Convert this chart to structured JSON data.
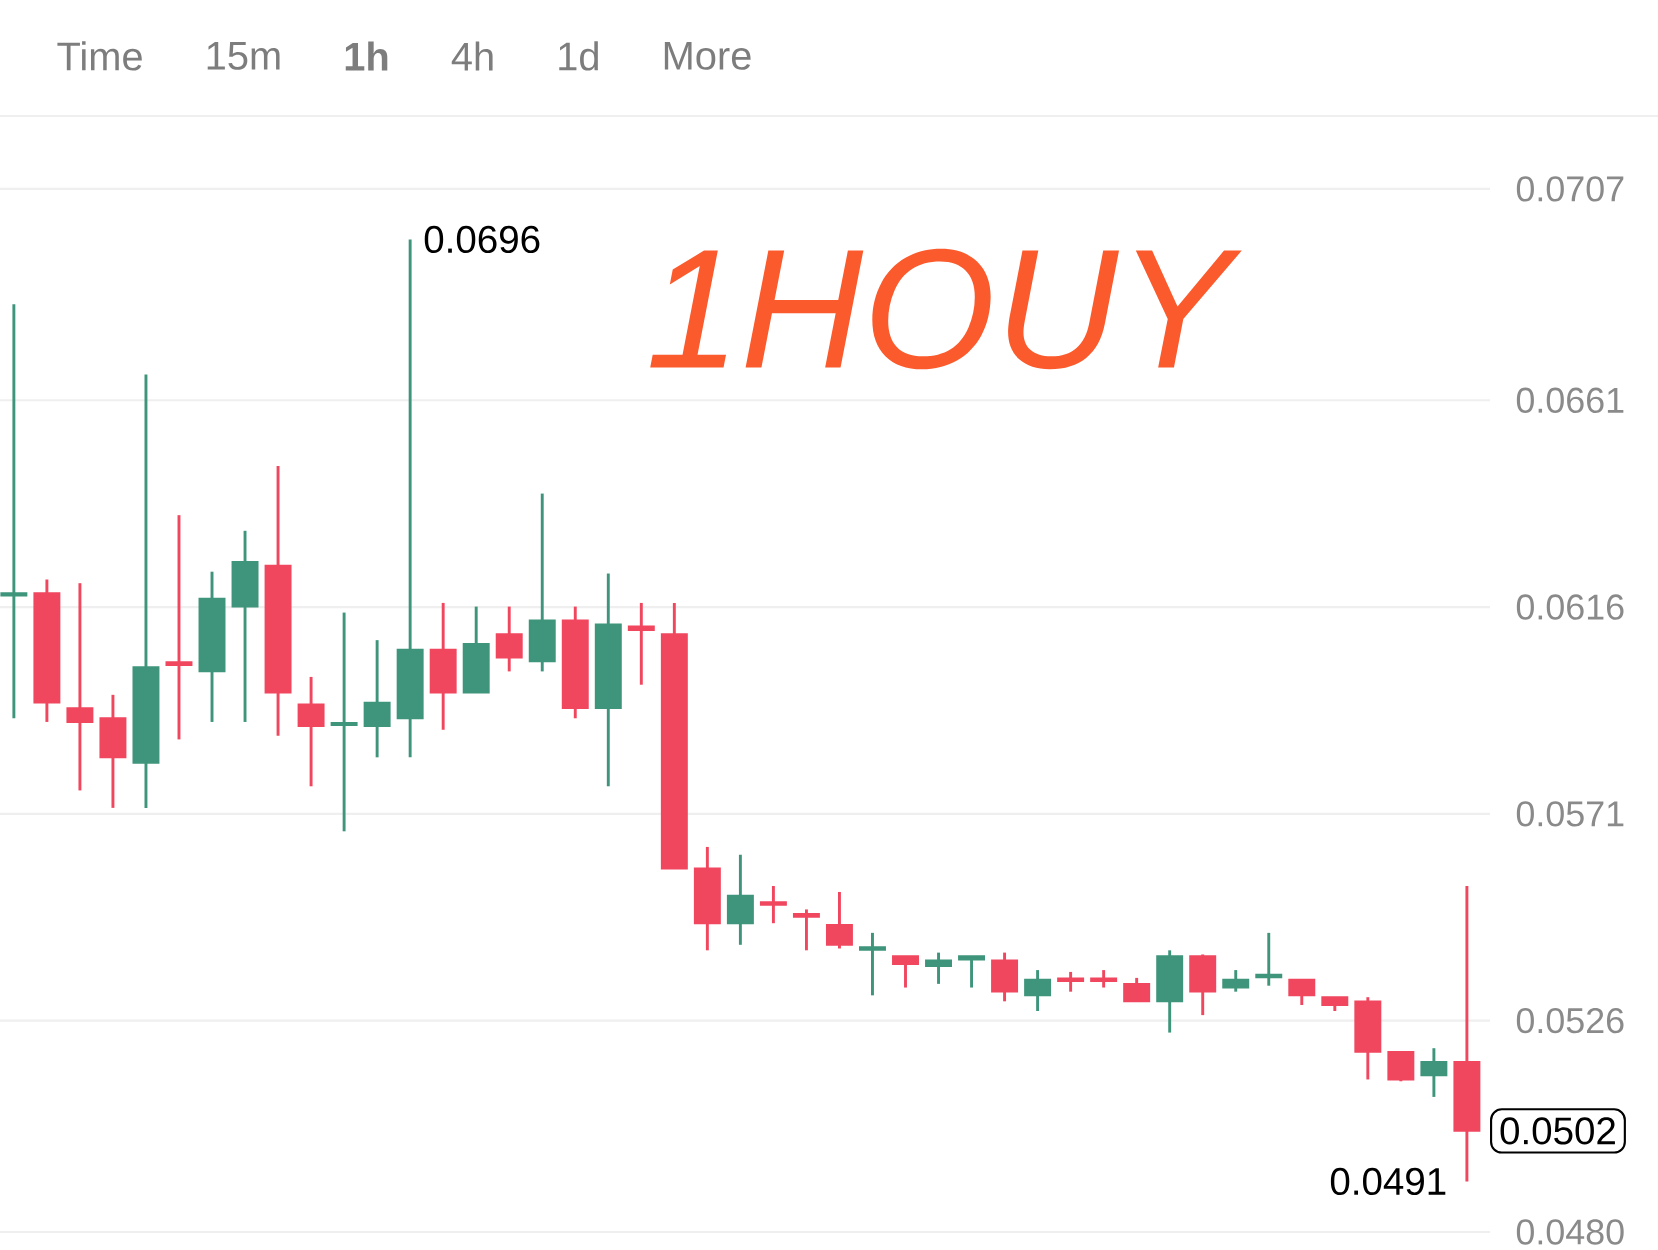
{
  "chart_data": {
    "type": "candlestick",
    "categories": [
      null,
      null,
      null,
      null,
      null,
      null,
      null,
      null,
      null,
      null,
      null,
      null,
      null,
      null,
      null,
      null,
      null,
      null,
      null,
      null,
      null,
      null,
      null,
      null,
      null,
      null,
      null,
      null,
      null,
      null,
      null,
      null,
      null,
      null,
      null,
      null,
      null,
      null,
      null,
      null,
      null,
      null,
      null,
      null,
      null
    ],
    "ohlc": [
      [
        0.06185,
        0.06819,
        0.05918,
        0.0619
      ],
      [
        0.0619,
        0.0622,
        0.0591,
        0.05952
      ],
      [
        0.0594,
        0.06212,
        0.05761,
        0.0591
      ],
      [
        0.05918,
        0.05969,
        0.05723,
        0.05833
      ],
      [
        0.05821,
        0.06666,
        0.05723,
        0.06029
      ],
      [
        0.0604,
        0.0636,
        0.05872,
        0.06034
      ],
      [
        0.0602,
        0.06237,
        0.0591,
        0.06178
      ],
      [
        0.06161,
        0.06326,
        0.0591,
        0.06258
      ],
      [
        0.0625,
        0.06467,
        0.0588,
        0.05974
      ],
      [
        0.05948,
        0.06008,
        0.0577,
        0.05901
      ],
      [
        0.05903,
        0.06148,
        0.05672,
        0.05908
      ],
      [
        0.05901,
        0.06088,
        0.05833,
        0.05952
      ],
      [
        0.05918,
        0.0696,
        0.05833,
        0.06067
      ],
      [
        0.06067,
        0.06169,
        0.05893,
        0.05974
      ],
      [
        0.05974,
        0.06161,
        0.05974,
        0.0608
      ],
      [
        0.06101,
        0.06161,
        0.0602,
        0.0605
      ],
      [
        0.06042,
        0.06407,
        0.0602,
        0.06131
      ],
      [
        0.06131,
        0.06161,
        0.05918,
        0.0594
      ],
      [
        0.0594,
        0.06233,
        0.0577,
        0.06122
      ],
      [
        0.06118,
        0.06169,
        0.05991,
        0.0611
      ],
      [
        0.06101,
        0.06169,
        0.05591,
        0.05591
      ],
      [
        0.05591,
        0.05638,
        0.05413,
        0.05472
      ],
      [
        0.05472,
        0.05621,
        0.05425,
        0.05532
      ],
      [
        0.05518,
        0.05553,
        0.05472,
        0.05512
      ],
      [
        0.05492,
        0.05502,
        0.05413,
        0.05486
      ],
      [
        0.05468,
        0.0554,
        0.05417,
        0.05425
      ],
      [
        0.05414,
        0.05451,
        0.05315,
        0.0542
      ],
      [
        0.054,
        0.054,
        0.05332,
        0.05383
      ],
      [
        0.05379,
        0.05408,
        0.0534,
        0.05391
      ],
      [
        0.05393,
        0.054,
        0.05332,
        0.054
      ],
      [
        0.05391,
        0.05408,
        0.05302,
        0.05323
      ],
      [
        0.05315,
        0.0537,
        0.05281,
        0.05349
      ],
      [
        0.05352,
        0.05366,
        0.05323,
        0.05346
      ],
      [
        0.05352,
        0.0537,
        0.05332,
        0.05346
      ],
      [
        0.0534,
        0.05353,
        0.05302,
        0.05302
      ],
      [
        0.05302,
        0.05413,
        0.05234,
        0.054
      ],
      [
        0.054,
        0.05404,
        0.05272,
        0.05323
      ],
      [
        0.05332,
        0.0537,
        0.05323,
        0.05349
      ],
      [
        0.05354,
        0.05451,
        0.05336,
        0.0536
      ],
      [
        0.05349,
        0.05349,
        0.05294,
        0.05315
      ],
      [
        0.05311,
        0.05311,
        0.05281,
        0.05294
      ],
      [
        0.05302,
        0.05311,
        0.05132,
        0.05192
      ],
      [
        0.05192,
        0.05192,
        0.05128,
        0.05132
      ],
      [
        0.05141,
        0.052,
        0.05094,
        0.0517
      ],
      [
        0.0517,
        0.05553,
        0.0491,
        0.0502
      ]
    ],
    "colors": [
      "#3f957b",
      "#f0475f",
      "#f0475f",
      "#f0475f",
      "#3f957b",
      "#f0475f",
      "#3f957b",
      "#3f957b",
      "#f0475f",
      "#f0475f",
      "#3f957b",
      "#3f957b",
      "#3f957b",
      "#f0475f",
      "#3f957b",
      "#f0475f",
      "#3f957b",
      "#f0475f",
      "#3f957b",
      "#f0475f",
      "#f0475f",
      "#f0475f",
      "#3f957b",
      "#f0475f",
      "#f0475f",
      "#f0475f",
      "#3f957b",
      "#f0475f",
      "#3f957b",
      "#3f957b",
      "#f0475f",
      "#3f957b",
      "#f0475f",
      "#f0475f",
      "#f0475f",
      "#3f957b",
      "#f0475f",
      "#3f957b",
      "#3f957b",
      "#f0475f",
      "#f0475f",
      "#f0475f",
      "#f0475f",
      "#3f957b",
      "#f0475f"
    ],
    "ylim": [
      0.048,
      0.0722
    ],
    "yticks": [
      0.0707,
      0.0661,
      0.0616,
      0.0571,
      0.0526,
      {
        "value": 0.048,
        "label": "0.0480"
      }
    ],
    "grid": "y",
    "annotations": [
      "Time",
      "15m",
      "1h",
      "4h",
      "1d",
      "More",
      "1HOUY",
      "0.0696",
      "0.0491",
      "0.0502"
    ]
  }
}
